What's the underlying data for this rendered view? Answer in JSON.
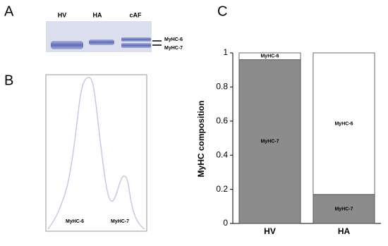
{
  "gel": {
    "panel_label": "A",
    "lanes": [
      "HV",
      "HA",
      "cAF"
    ],
    "bands": [
      "MyHC-6",
      "MyHC-7"
    ]
  },
  "trace": {
    "panel_label": "B",
    "peaks": [
      "MyHC-6",
      "MyHC-7"
    ]
  },
  "chart_data": {
    "type": "bar",
    "stacked": true,
    "panel_label": "C",
    "ylabel": "MyHC composition",
    "categories": [
      "HV",
      "HA"
    ],
    "series": [
      {
        "name": "MyHC-7",
        "color": "#8c8c8c",
        "values": [
          0.96,
          0.17
        ]
      },
      {
        "name": "MyHC-6",
        "color": "#ffffff",
        "values": [
          0.04,
          0.83
        ]
      }
    ],
    "ylim": [
      0,
      1
    ],
    "yticks": [
      0,
      0.2,
      0.4,
      0.6,
      0.8,
      1
    ]
  }
}
